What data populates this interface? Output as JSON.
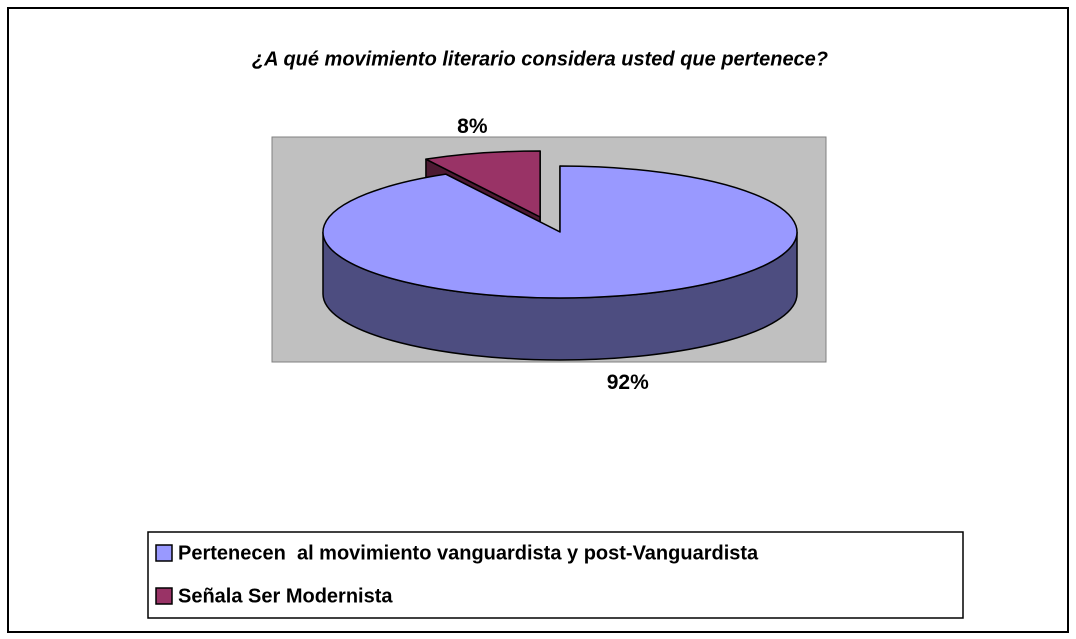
{
  "chart_data": {
    "type": "pie",
    "title": "¿A qué movimiento literario considera usted que pertenece?",
    "categories": [
      "Pertenecen  al movimiento vanguardista y post-Vanguardista",
      "Señala Ser Modernista"
    ],
    "values": [
      92,
      8
    ],
    "value_labels": [
      "92%",
      "8%"
    ],
    "colors": [
      "#9999ff",
      "#993366"
    ],
    "legend": "bottom"
  }
}
